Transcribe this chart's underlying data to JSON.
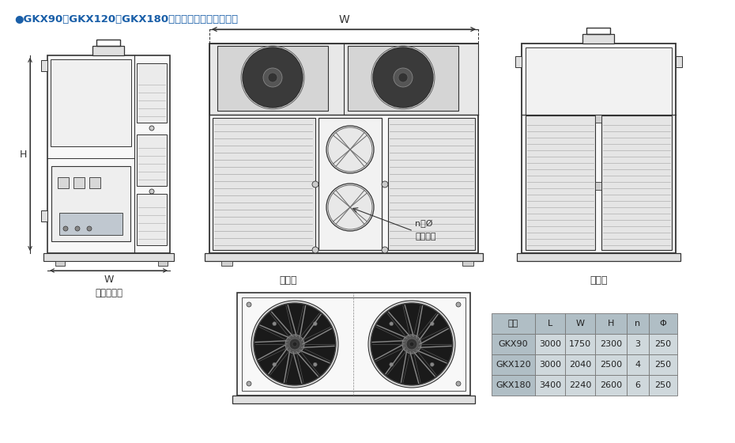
{
  "title": "●GKX90、GKX120、GKX180全新风岗位送风机外形图",
  "title_color": "#1a5fa8",
  "bg_color": "#ffffff",
  "table_headers": [
    "名称",
    "L",
    "W",
    "H",
    "n",
    "Φ"
  ],
  "table_rows": [
    [
      "GKX90",
      "3000",
      "1750",
      "2300",
      "3",
      "250"
    ],
    [
      "GKX120",
      "3000",
      "2040",
      "2500",
      "4",
      "250"
    ],
    [
      "GKX180",
      "3400",
      "2240",
      "2600",
      "6",
      "250"
    ]
  ],
  "label_left": "电器检修面",
  "label_w": "W",
  "label_h": "H",
  "label_front": "出风面",
  "label_valve1": "n－Ø",
  "label_valve2": "出风风阀",
  "label_right": "进风面",
  "line_color": "#333333",
  "table_header_bg": "#b0bec5",
  "table_cell_bg": "#cfd8dc",
  "table_name_bg": "#b0bec5"
}
